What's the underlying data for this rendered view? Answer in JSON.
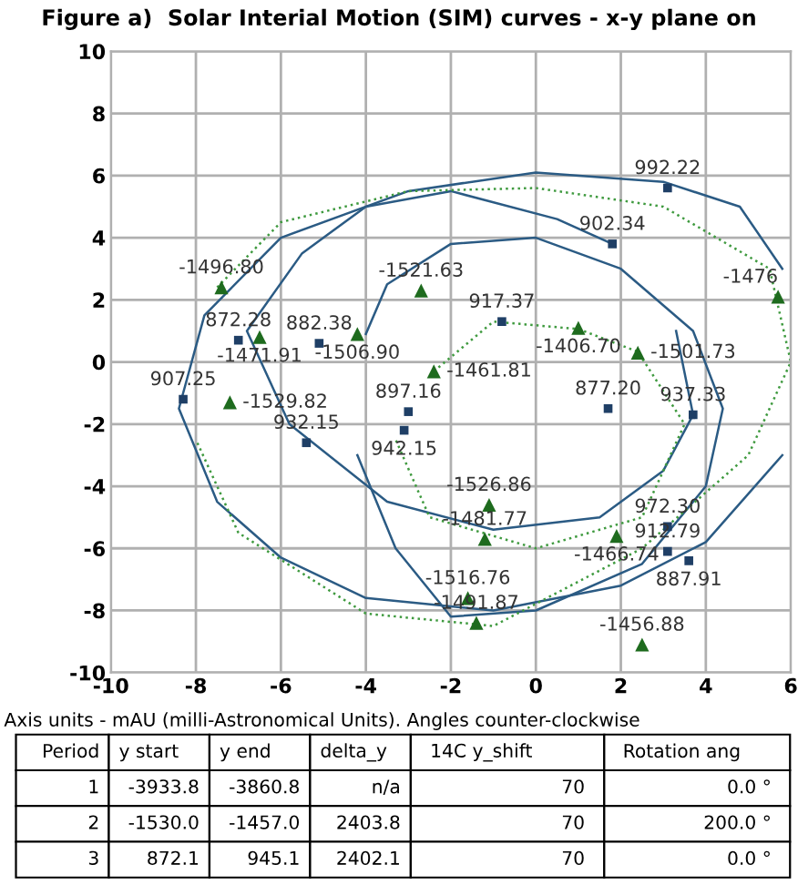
{
  "chart_data": [
    {
      "type": "scatter",
      "title": "Figure a)  Solar Interial Motion (SIM) curves - x-y plane on",
      "xlim": [
        -10,
        6
      ],
      "ylim": [
        -10,
        10
      ],
      "xticks": [
        -10,
        -8,
        -6,
        -4,
        -2,
        0,
        2,
        4,
        6
      ],
      "yticks": [
        -10,
        -8,
        -6,
        -4,
        -2,
        0,
        2,
        4,
        6,
        8,
        10
      ],
      "grid": true,
      "series": [
        {
          "type": "line",
          "color": "#2b5b84",
          "line_style": "solid",
          "marker": "none",
          "x": [
            5.8,
            4.8,
            3,
            0,
            -3,
            -6,
            -7.8,
            -8.4,
            -7.5,
            -6,
            -4,
            -1,
            2,
            4,
            5.8
          ],
          "values": [
            3,
            5,
            5.8,
            6.1,
            5.5,
            4,
            1.5,
            -1.5,
            -4.5,
            -6.3,
            -7.6,
            -8,
            -7.2,
            -5.8,
            -3
          ]
        },
        {
          "type": "line",
          "color": "#2b5b84",
          "line_style": "solid",
          "marker": "none",
          "x": [
            1.8,
            0.5,
            -2,
            -4,
            -5.5,
            -6.8,
            -5.8,
            -3.5,
            -1,
            1.5,
            3,
            3.7,
            3.3
          ],
          "values": [
            3.8,
            4.6,
            5.5,
            5,
            3.5,
            1,
            -2,
            -4.5,
            -5.4,
            -5,
            -3.5,
            -1.7,
            1
          ]
        },
        {
          "type": "line",
          "color": "#2b5b84",
          "line_style": "solid",
          "marker": "none",
          "x": [
            -4,
            -3.5,
            -2,
            0,
            2,
            3.7,
            4.4,
            4,
            2.5,
            0,
            -2,
            -3.3,
            -4.2
          ],
          "values": [
            0.9,
            2.5,
            3.8,
            4,
            3,
            1,
            -1.5,
            -4,
            -6.5,
            -8,
            -8.2,
            -6,
            -3
          ]
        },
        {
          "type": "line",
          "color": "#3f9a3f",
          "line_style": "dotted",
          "marker": "none",
          "x": [
            -7.5,
            -6,
            -3,
            0,
            3,
            5.5,
            6,
            5,
            2.5,
            -1,
            -4,
            -7,
            -8
          ],
          "values": [
            2.4,
            4.5,
            5.5,
            5.6,
            5,
            3,
            0,
            -3,
            -6,
            -8.5,
            -8.1,
            -5.5,
            -2.5
          ]
        },
        {
          "type": "line",
          "color": "#3f9a3f",
          "line_style": "dotted",
          "marker": "none",
          "x": [
            -2.4,
            -1,
            1,
            2.4,
            3.5,
            2.5,
            0,
            -2.5,
            -3.3
          ],
          "values": [
            -0.3,
            1.3,
            1.06,
            0.33,
            -2,
            -5,
            -6,
            -5,
            -2.5
          ]
        },
        {
          "type": "scatter",
          "color": "#1f3f66",
          "marker": "square",
          "x": [
            3.1,
            1.8,
            -0.8,
            1.7,
            3.7,
            -3.0,
            -3.1,
            -7.0,
            -5.1,
            -8.3,
            -5.4,
            3.1,
            3.1,
            3.6
          ],
          "values": [
            5.6,
            3.8,
            1.3,
            -1.5,
            -1.7,
            -1.6,
            -2.2,
            0.7,
            0.6,
            -1.2,
            -2.6,
            -5.3,
            -6.1,
            -6.4
          ]
        },
        {
          "type": "scatter",
          "color": "#1e6b1e",
          "marker": "triangle",
          "x": [
            -7.4,
            -6.5,
            -4.2,
            -7.2,
            -2.7,
            1.0,
            2.4,
            -2.4,
            5.7,
            -1.1,
            -1.2,
            1.9,
            -1.6,
            -1.4,
            2.5
          ],
          "values": [
            2.4,
            0.8,
            0.9,
            -1.3,
            2.3,
            1.1,
            0.3,
            -0.3,
            2.1,
            -4.6,
            -5.7,
            -5.6,
            -7.6,
            -8.4,
            -9.1
          ]
        }
      ],
      "annotations": [
        {
          "text": "992.22",
          "x": 3.1,
          "y": 5.6
        },
        {
          "text": "902.34",
          "x": 1.8,
          "y": 3.8
        },
        {
          "text": "917.37",
          "x": -0.8,
          "y": 1.3
        },
        {
          "text": "877.20",
          "x": 1.7,
          "y": -1.5
        },
        {
          "text": "937.33",
          "x": 3.7,
          "y": -1.7
        },
        {
          "text": "897.16",
          "x": -3.0,
          "y": -1.6
        },
        {
          "text": "942.15",
          "x": -3.1,
          "y": -2.2
        },
        {
          "text": "872.28",
          "x": -7.0,
          "y": 0.7
        },
        {
          "text": "882.38",
          "x": -5.1,
          "y": 0.6
        },
        {
          "text": "907.25",
          "x": -8.3,
          "y": -1.2
        },
        {
          "text": "932.15",
          "x": -5.4,
          "y": -2.6
        },
        {
          "text": "972.30",
          "x": 3.1,
          "y": -5.3
        },
        {
          "text": "912.79",
          "x": 3.1,
          "y": -6.1
        },
        {
          "text": "887.91",
          "x": 3.6,
          "y": -6.4
        },
        {
          "text": "-1496.80",
          "x": -7.4,
          "y": 2.4
        },
        {
          "text": "-1471.91",
          "x": -6.5,
          "y": 0.8
        },
        {
          "text": "-1506.90",
          "x": -4.2,
          "y": 0.9
        },
        {
          "text": "-1529.82",
          "x": -7.2,
          "y": -1.3
        },
        {
          "text": "-1521.63",
          "x": -2.7,
          "y": 2.3
        },
        {
          "text": "-1406.70",
          "x": 1.0,
          "y": 1.1
        },
        {
          "text": "-1501.73",
          "x": 2.4,
          "y": 0.3
        },
        {
          "text": "-1461.81",
          "x": -2.4,
          "y": -0.3
        },
        {
          "text": "-1476",
          "x": 5.7,
          "y": 2.1
        },
        {
          "text": "-1526.86",
          "x": -1.1,
          "y": -4.6
        },
        {
          "text": "-1481.77",
          "x": -1.2,
          "y": -5.7
        },
        {
          "text": "-1466.74",
          "x": 1.9,
          "y": -5.6
        },
        {
          "text": "-1516.76",
          "x": -1.6,
          "y": -7.6
        },
        {
          "text": "-1491.87",
          "x": -1.4,
          "y": -8.4
        },
        {
          "text": "-1456.88",
          "x": 2.5,
          "y": -9.1
        }
      ]
    },
    {
      "type": "other",
      "title": "Axis units - mAU (milli-Astronomical Units). Angles counter-clockwise",
      "categories": [
        "Period",
        "y start",
        "y end",
        "delta_y",
        "14C y_shift",
        "Rotation ang"
      ],
      "annotations": [
        "1",
        "-3933.8",
        "-3860.8",
        "n/a",
        "70",
        "0.0 °",
        "2",
        "-1530.0",
        "-1457.0",
        "2403.8",
        "70",
        "200.0 °",
        "3",
        "872.1",
        "945.1",
        "2402.1",
        "70",
        "0.0 °"
      ]
    }
  ]
}
